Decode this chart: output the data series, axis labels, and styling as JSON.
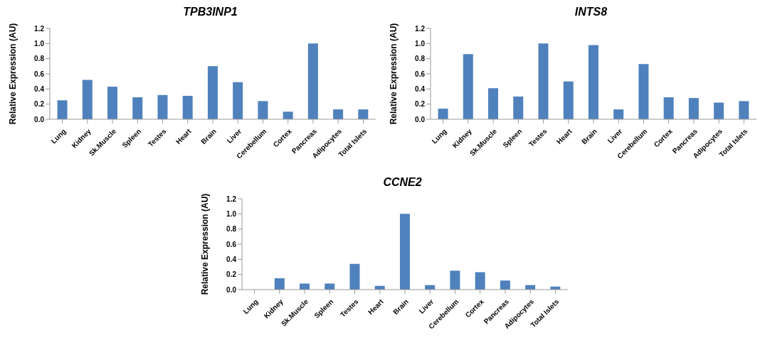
{
  "chart_data": [
    {
      "type": "bar",
      "title": "TPB3INP1",
      "ylabel": "Relative Expression (AU)",
      "categories": [
        "Lung",
        "Kidney",
        "Sk.Muscle",
        "Spleen",
        "Testes",
        "Heart",
        "Brain",
        "Liver",
        "Cerebellum",
        "Cortex",
        "Pancreas",
        "Adipocytes",
        "Total Islets"
      ],
      "values": [
        0.25,
        0.52,
        0.43,
        0.29,
        0.32,
        0.31,
        0.7,
        0.49,
        0.24,
        0.1,
        1.0,
        0.13,
        0.13
      ],
      "color": "#4f81bd",
      "ylim": [
        0,
        1.2
      ],
      "yticks": [
        {
          "value": 0,
          "label": "0.0"
        },
        {
          "value": 0.2,
          "label": "0.2"
        },
        {
          "value": 0.4,
          "label": "0.4"
        },
        {
          "value": 0.6,
          "label": "0.6"
        },
        {
          "value": 0.8,
          "label": "0.8"
        },
        {
          "value": 1.0,
          "label": "1.0"
        },
        {
          "value": 1.2,
          "label": "1.2"
        }
      ],
      "grid": false
    },
    {
      "type": "bar",
      "title": "INTS8",
      "ylabel": "Relative Expression (AU)",
      "categories": [
        "Lung",
        "Kidney",
        "Sk.Muscle",
        "Spleen",
        "Testes",
        "Heart",
        "Brain",
        "Liver",
        "Cerebellum",
        "Cortex",
        "Pancreas",
        "Adipocytes",
        "Total Islets"
      ],
      "values": [
        0.14,
        0.86,
        0.41,
        0.3,
        1.0,
        0.5,
        0.98,
        0.13,
        0.73,
        0.29,
        0.28,
        0.22,
        0.24
      ],
      "color": "#4f81bd",
      "ylim": [
        0,
        1.2
      ],
      "yticks": [
        {
          "value": 0,
          "label": "0.0"
        },
        {
          "value": 0.2,
          "label": "0.2"
        },
        {
          "value": 0.4,
          "label": "0.4"
        },
        {
          "value": 0.6,
          "label": "0.6"
        },
        {
          "value": 0.8,
          "label": "0.8"
        },
        {
          "value": 1.0,
          "label": "1.0"
        },
        {
          "value": 1.2,
          "label": "1.2"
        }
      ],
      "grid": false
    },
    {
      "type": "bar",
      "title": "CCNE2",
      "ylabel": "Relative Expression (AU)",
      "categories": [
        "Lung",
        "Kidney",
        "Sk.Muscle",
        "Spleen",
        "Testes",
        "Heart",
        "Brain",
        "Liver",
        "Cerebellum",
        "Cortex",
        "Pancreas",
        "Adipocytes",
        "Total Islets"
      ],
      "values": [
        0,
        0.15,
        0.08,
        0.08,
        0.34,
        0.05,
        1.0,
        0.06,
        0.25,
        0.23,
        0.12,
        0.06,
        0.04
      ],
      "color": "#4f81bd",
      "ylim": [
        0,
        1.2
      ],
      "yticks": [
        {
          "value": 0,
          "label": "0.0"
        },
        {
          "value": 0.2,
          "label": "0.2"
        },
        {
          "value": 0.4,
          "label": "0.4"
        },
        {
          "value": 0.6,
          "label": "0.6"
        },
        {
          "value": 0.8,
          "label": "0.8"
        },
        {
          "value": 1.0,
          "label": "1.0"
        },
        {
          "value": 1.2,
          "label": "1.2"
        }
      ],
      "grid": false
    }
  ]
}
